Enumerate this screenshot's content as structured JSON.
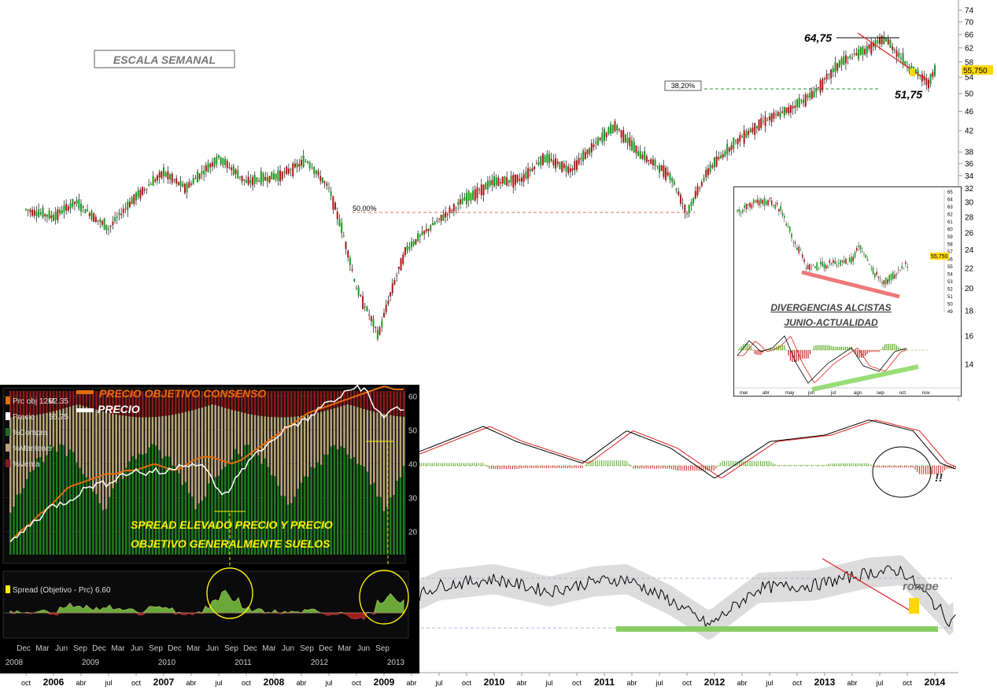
{
  "chart_data": [
    {
      "type": "candlestick",
      "scale_label": "ESCALA SEMANAL",
      "y_ticks": [
        "74",
        "70",
        "66",
        "62",
        "58",
        "54",
        "50",
        "46",
        "42",
        "38",
        "36",
        "34",
        "32",
        "30",
        "28",
        "26",
        "24",
        "22",
        "20",
        "18",
        "16",
        "14"
      ],
      "x_ticks": [
        {
          "label": "oct",
          "bold": false
        },
        {
          "label": "2006",
          "bold": true
        },
        {
          "label": "abr",
          "bold": false
        },
        {
          "label": "jul",
          "bold": false
        },
        {
          "label": "oct",
          "bold": false
        },
        {
          "label": "2007",
          "bold": true
        },
        {
          "label": "abr",
          "bold": false
        },
        {
          "label": "jul",
          "bold": false
        },
        {
          "label": "oct",
          "bold": false
        },
        {
          "label": "2008",
          "bold": true
        },
        {
          "label": "abr",
          "bold": false
        },
        {
          "label": "jul",
          "bold": false
        },
        {
          "label": "oct",
          "bold": false
        },
        {
          "label": "2009",
          "bold": true
        },
        {
          "label": "abr",
          "bold": false
        },
        {
          "label": "jul",
          "bold": false
        },
        {
          "label": "oct",
          "bold": false
        },
        {
          "label": "2010",
          "bold": true
        },
        {
          "label": "abr",
          "bold": false
        },
        {
          "label": "jul",
          "bold": false
        },
        {
          "label": "oct",
          "bold": false
        },
        {
          "label": "2011",
          "bold": true
        },
        {
          "label": "abr",
          "bold": false
        },
        {
          "label": "jul",
          "bold": false
        },
        {
          "label": "oct",
          "bold": false
        },
        {
          "label": "2012",
          "bold": true
        },
        {
          "label": "abr",
          "bold": false
        },
        {
          "label": "jul",
          "bold": false
        },
        {
          "label": "oct",
          "bold": false
        },
        {
          "label": "2013",
          "bold": true
        },
        {
          "label": "abr",
          "bold": false
        },
        {
          "label": "jul",
          "bold": false
        },
        {
          "label": "oct",
          "bold": false
        },
        {
          "label": "2014",
          "bold": true
        }
      ],
      "last_price": "55,750",
      "high_label": "64,75",
      "low_label": "51,75",
      "fib_38": "38,20%",
      "fib_50": "50,00%",
      "price_path": [
        [
          2005.75,
          29
        ],
        [
          2006.0,
          28
        ],
        [
          2006.2,
          30
        ],
        [
          2006.5,
          26.5
        ],
        [
          2006.7,
          30
        ],
        [
          2007.0,
          34.5
        ],
        [
          2007.2,
          32
        ],
        [
          2007.5,
          37
        ],
        [
          2007.75,
          33
        ],
        [
          2008.05,
          34
        ],
        [
          2008.3,
          36.5
        ],
        [
          2008.5,
          32
        ],
        [
          2008.75,
          20
        ],
        [
          2008.95,
          16
        ],
        [
          2009.2,
          24
        ],
        [
          2009.45,
          27
        ],
        [
          2009.7,
          30
        ],
        [
          2010.0,
          33
        ],
        [
          2010.25,
          33.5
        ],
        [
          2010.45,
          37
        ],
        [
          2010.7,
          35
        ],
        [
          2010.9,
          39
        ],
        [
          2011.1,
          43
        ],
        [
          2011.3,
          38
        ],
        [
          2011.6,
          34
        ],
        [
          2011.75,
          28.5
        ],
        [
          2011.95,
          35
        ],
        [
          2012.2,
          40
        ],
        [
          2012.45,
          44
        ],
        [
          2012.65,
          46
        ],
        [
          2012.9,
          50
        ],
        [
          2013.15,
          58
        ],
        [
          2013.35,
          61
        ],
        [
          2013.55,
          64.75
        ],
        [
          2013.75,
          57
        ],
        [
          2013.95,
          52.5
        ],
        [
          2014.0,
          55.75
        ]
      ],
      "resistance_trendline": [
        [
          2013.55,
          66
        ],
        [
          2013.98,
          54
        ]
      ]
    },
    {
      "type": "macd",
      "annotation": "!!",
      "macd_path": [
        [
          2005.75,
          40
        ],
        [
          2006.6,
          54
        ],
        [
          2007.2,
          45
        ],
        [
          2007.7,
          58
        ],
        [
          2008.2,
          50
        ],
        [
          2008.6,
          35
        ],
        [
          2009.0,
          48
        ],
        [
          2009.7,
          62
        ],
        [
          2010.0,
          55
        ],
        [
          2010.6,
          45
        ],
        [
          2011.0,
          60
        ],
        [
          2011.4,
          52
        ],
        [
          2011.8,
          38
        ],
        [
          2012.3,
          55
        ],
        [
          2012.8,
          58
        ],
        [
          2013.2,
          65
        ],
        [
          2013.6,
          60
        ],
        [
          2013.85,
          45
        ],
        [
          2014.0,
          42
        ]
      ]
    },
    {
      "type": "line",
      "annotation": "rompe",
      "rsi_path": [
        [
          2005.75,
          50
        ],
        [
          2006.6,
          62
        ],
        [
          2007.2,
          52
        ],
        [
          2007.7,
          65
        ],
        [
          2008.2,
          55
        ],
        [
          2008.7,
          35
        ],
        [
          2009.3,
          60
        ],
        [
          2009.8,
          65
        ],
        [
          2010.3,
          55
        ],
        [
          2010.7,
          63
        ],
        [
          2011.0,
          65
        ],
        [
          2011.4,
          48
        ],
        [
          2011.75,
          28
        ],
        [
          2012.2,
          58
        ],
        [
          2012.7,
          60
        ],
        [
          2013.2,
          70
        ],
        [
          2013.5,
          72
        ],
        [
          2013.8,
          45
        ],
        [
          2013.95,
          30
        ],
        [
          2014.0,
          45
        ]
      ],
      "resistance_trendline": [
        [
          2013.4,
          75
        ],
        [
          2013.98,
          45
        ]
      ]
    },
    {
      "type": "candlestick",
      "title": "DIVERGENCIAS ALCISTAS",
      "subtitle": "JUNIO-ACTUALIDAD",
      "y_ticks": [
        "65",
        "64",
        "63",
        "62",
        "61",
        "60",
        "59",
        "58",
        "57",
        "56",
        "55",
        "54",
        "53",
        "52",
        "51",
        "50",
        "49"
      ],
      "last_price": "55,750",
      "x_ticks": [
        "mar",
        "abr",
        "may",
        "jun",
        "jul",
        "ago",
        "sep",
        "oct",
        "nov"
      ]
    },
    {
      "type": "bar",
      "title": "PRECIO OBJETIVO CONSENSO",
      "subtitle": "PRECIO",
      "annotation_line1": "SPREAD ELEVADO PRECIO Y PRECIO",
      "annotation_line2": "OBJETIVO GENERALMENTE SUELOS",
      "legend": [
        {
          "label": "Prc obj 12M",
          "value": "62.35",
          "color": "#e46c0a"
        },
        {
          "label": "Precio",
          "value": "55.75",
          "color": "#ffffff"
        },
        {
          "label": "%Compra",
          "value": "",
          "color": "#1f6e1f"
        },
        {
          "label": "%Mantener",
          "value": "",
          "color": "#b8a57a"
        },
        {
          "label": "%Venta",
          "value": "",
          "color": "#8b1a1a"
        }
      ],
      "y_ticks": [
        "60",
        "50",
        "40",
        "30",
        "20"
      ],
      "spread_label": "Spread (Objetivo - Prc)",
      "spread_value": "6.60",
      "x_months": [
        "Dec",
        "Mar",
        "Jun",
        "Sep",
        "Dec",
        "Mar",
        "Jun",
        "Sep",
        "Dec",
        "Mar",
        "Jun",
        "Sep",
        "Dec",
        "Mar",
        "Jun",
        "Sep",
        "Dec",
        "Mar",
        "Jun",
        "Sep"
      ],
      "x_years": [
        "2008",
        "2009",
        "2010",
        "2011",
        "2012",
        "2013"
      ],
      "target_series": [
        17,
        20,
        22,
        25,
        27,
        30,
        33,
        34,
        35,
        36,
        37,
        37,
        38,
        38,
        39,
        40,
        39,
        38,
        39,
        41,
        42,
        42,
        41,
        40,
        41,
        43,
        45,
        47,
        49,
        51,
        53,
        55,
        56,
        57,
        58,
        59,
        60,
        61,
        62,
        63,
        62,
        62
      ],
      "price_series": [
        17,
        19,
        22,
        24,
        27,
        28,
        29,
        31,
        33,
        34,
        34,
        36,
        37,
        38,
        37,
        38,
        37,
        39,
        40,
        40,
        39,
        36,
        30,
        33,
        38,
        41,
        44,
        46,
        49,
        51,
        52,
        53,
        56,
        58,
        59,
        61,
        63,
        62,
        56,
        54,
        57,
        55
      ]
    }
  ]
}
